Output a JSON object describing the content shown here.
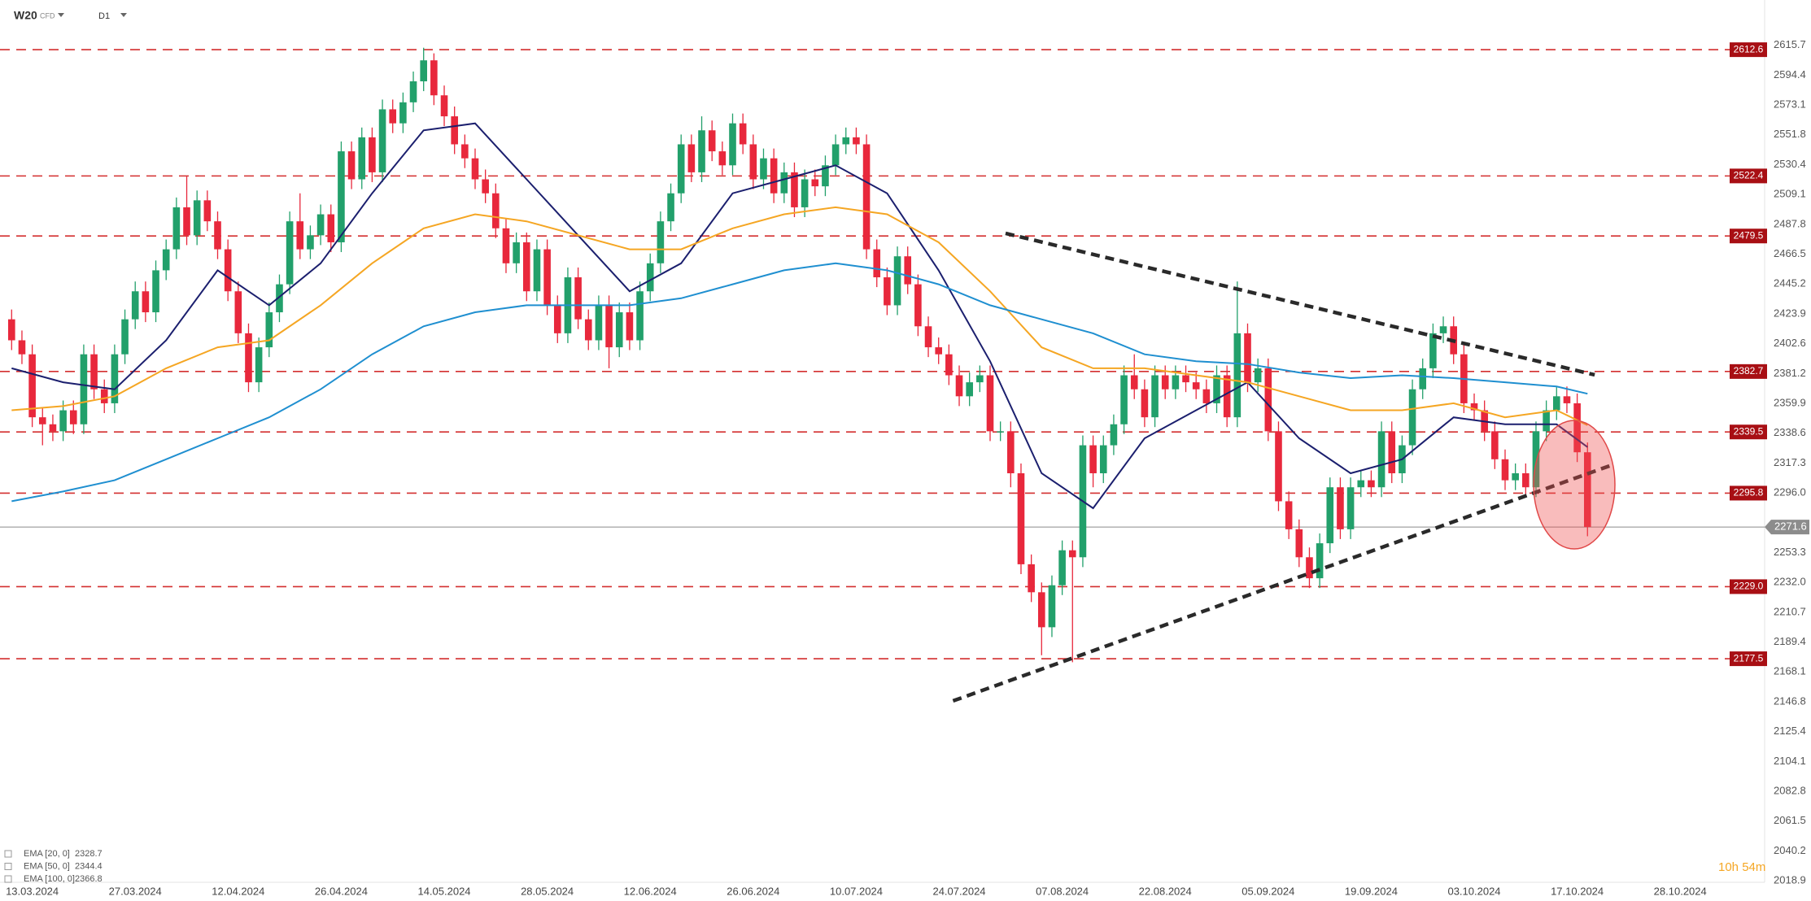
{
  "header": {
    "symbol": "W20",
    "badge": "CFD",
    "interval": "D1"
  },
  "countdown": "10h 54m",
  "chart_data": {
    "type": "candlestick",
    "up_color": "#22a06b",
    "down_color": "#e8283c",
    "categories": [
      null,
      null,
      "13.03.2024",
      null,
      null,
      null,
      null,
      null,
      null,
      null,
      null,
      null,
      "27.03.2024",
      null,
      null,
      null,
      null,
      null,
      null,
      null,
      null,
      null,
      "12.04.2024",
      null,
      null,
      null,
      null,
      null,
      null,
      null,
      null,
      null,
      "26.04.2024",
      null,
      null,
      null,
      null,
      null,
      null,
      null,
      null,
      null,
      "14.05.2024",
      null,
      null,
      null,
      null,
      null,
      null,
      null,
      null,
      null,
      "28.05.2024",
      null,
      null,
      null,
      null,
      null,
      null,
      null,
      null,
      null,
      "12.06.2024",
      null,
      null,
      null,
      null,
      null,
      null,
      null,
      null,
      null,
      "26.06.2024",
      null,
      null,
      null,
      null,
      null,
      null,
      null,
      null,
      null,
      "10.07.2024",
      null,
      null,
      null,
      null,
      null,
      null,
      null,
      null,
      null,
      "24.07.2024",
      null,
      null,
      null,
      null,
      null,
      null,
      null,
      null,
      null,
      "07.08.2024",
      null,
      null,
      null,
      null,
      null,
      null,
      null,
      null,
      null,
      "22.08.2024",
      null,
      null,
      null,
      null,
      null,
      null,
      null,
      null,
      null,
      "05.09.2024",
      null,
      null,
      null,
      null,
      null,
      null,
      null,
      null,
      null,
      "19.09.2024",
      null,
      null,
      null,
      null,
      null,
      null,
      null,
      null,
      null,
      "03.10.2024",
      null,
      null,
      null,
      null,
      null,
      null,
      null,
      null,
      null,
      "17.10.2024",
      null,
      null,
      null,
      null,
      null,
      null,
      null,
      null,
      null,
      "28.10.2024"
    ],
    "open": [
      2420,
      2405,
      2395,
      2350,
      2345,
      2340,
      2355,
      2345,
      2395,
      2370,
      2360,
      2395,
      2420,
      2440,
      2425,
      2455,
      2470,
      2500,
      2480,
      2505,
      2490,
      2470,
      2440,
      2410,
      2375,
      2400,
      2425,
      2445,
      2490,
      2470,
      2480,
      2495,
      2475,
      2540,
      2520,
      2550,
      2525,
      2570,
      2560,
      2575,
      2590,
      2605,
      2580,
      2565,
      2545,
      2535,
      2520,
      2510,
      2485,
      2460,
      2475,
      2440,
      2470,
      2430,
      2410,
      2450,
      2420,
      2405,
      2430,
      2400,
      2425,
      2405,
      2440,
      2460,
      2490,
      2510,
      2545,
      2525,
      2555,
      2540,
      2530,
      2560,
      2545,
      2520,
      2535,
      2510,
      2525,
      2500,
      2520,
      2515,
      2530,
      2545,
      2550,
      2545,
      2470,
      2450,
      2430,
      2465,
      2445,
      2415,
      2400,
      2395,
      2380,
      2365,
      2375,
      2380,
      2340,
      2340,
      2310,
      2245,
      2225,
      2200,
      2230,
      2255,
      2250,
      2330,
      2310,
      2330,
      2345,
      2380,
      2370,
      2350,
      2380,
      2370,
      2380,
      2375,
      2370,
      2360,
      2380,
      2350,
      2410,
      2375,
      2385,
      2340,
      2290,
      2270,
      2250,
      2235,
      2260,
      2300,
      2270,
      2300,
      2305,
      2300,
      2340,
      2310,
      2330,
      2370,
      2385,
      2410,
      2415,
      2395,
      2360,
      2355,
      2340,
      2320,
      2305,
      2310,
      2300,
      2340,
      2355,
      2365,
      2360,
      2325,
      null,
      null,
      null,
      null,
      null,
      null,
      null,
      null,
      null
    ],
    "high": [
      2427,
      2412,
      2402,
      2357,
      2352,
      2362,
      2362,
      2402,
      2402,
      2377,
      2402,
      2427,
      2447,
      2447,
      2462,
      2477,
      2507,
      2522,
      2512,
      2512,
      2497,
      2477,
      2447,
      2417,
      2407,
      2432,
      2452,
      2497,
      2510,
      2487,
      2502,
      2502,
      2547,
      2547,
      2557,
      2557,
      2577,
      2577,
      2582,
      2597,
      2614,
      2610,
      2587,
      2572,
      2552,
      2542,
      2527,
      2517,
      2492,
      2482,
      2482,
      2477,
      2477,
      2437,
      2457,
      2457,
      2427,
      2437,
      2437,
      2432,
      2432,
      2447,
      2467,
      2497,
      2517,
      2552,
      2552,
      2565,
      2562,
      2547,
      2567,
      2567,
      2552,
      2542,
      2542,
      2532,
      2532,
      2527,
      2527,
      2537,
      2552,
      2557,
      2557,
      2552,
      2477,
      2457,
      2472,
      2472,
      2452,
      2422,
      2407,
      2402,
      2387,
      2382,
      2387,
      2387,
      2347,
      2347,
      2317,
      2252,
      2232,
      2237,
      2262,
      2262,
      2337,
      2337,
      2337,
      2352,
      2387,
      2395,
      2377,
      2387,
      2387,
      2387,
      2387,
      2382,
      2377,
      2387,
      2387,
      2447,
      2417,
      2392,
      2392,
      2347,
      2297,
      2277,
      2257,
      2267,
      2307,
      2307,
      2307,
      2312,
      2312,
      2347,
      2347,
      2337,
      2377,
      2392,
      2417,
      2422,
      2422,
      2402,
      2367,
      2362,
      2347,
      2327,
      2317,
      2317,
      2347,
      2362,
      2372,
      2372,
      2367,
      2332,
      null,
      null,
      null,
      null,
      null,
      null,
      null,
      null,
      null
    ],
    "low": [
      2398,
      2388,
      2343,
      2330,
      2333,
      2333,
      2338,
      2338,
      2363,
      2353,
      2353,
      2388,
      2413,
      2418,
      2418,
      2448,
      2463,
      2473,
      2473,
      2483,
      2463,
      2433,
      2403,
      2368,
      2368,
      2393,
      2418,
      2438,
      2463,
      2463,
      2473,
      2468,
      2468,
      2513,
      2513,
      2518,
      2518,
      2553,
      2553,
      2568,
      2583,
      2573,
      2558,
      2538,
      2528,
      2513,
      2503,
      2478,
      2453,
      2453,
      2433,
      2433,
      2423,
      2403,
      2403,
      2413,
      2398,
      2398,
      2385,
      2393,
      2398,
      2398,
      2433,
      2453,
      2483,
      2503,
      2518,
      2518,
      2533,
      2523,
      2523,
      2538,
      2513,
      2513,
      2503,
      2503,
      2493,
      2493,
      2508,
      2508,
      2523,
      2538,
      2538,
      2463,
      2443,
      2423,
      2423,
      2438,
      2408,
      2393,
      2388,
      2373,
      2358,
      2358,
      2368,
      2333,
      2333,
      2300,
      2238,
      2218,
      2180,
      2193,
      2223,
      2175,
      2243,
      2300,
      2303,
      2323,
      2338,
      2363,
      2343,
      2343,
      2363,
      2363,
      2368,
      2363,
      2353,
      2353,
      2343,
      2343,
      2368,
      2368,
      2333,
      2283,
      2263,
      2243,
      2228,
      2228,
      2253,
      2263,
      2263,
      2293,
      2293,
      2293,
      2303,
      2303,
      2323,
      2363,
      2378,
      2403,
      2388,
      2353,
      2348,
      2333,
      2313,
      2298,
      2298,
      2293,
      2293,
      2333,
      2348,
      2353,
      2318,
      2265,
      null,
      null,
      null,
      null,
      null,
      null,
      null,
      null,
      null
    ],
    "close": [
      2405,
      2395,
      2350,
      2345,
      2340,
      2355,
      2345,
      2395,
      2370,
      2360,
      2395,
      2420,
      2440,
      2425,
      2455,
      2470,
      2500,
      2480,
      2505,
      2490,
      2470,
      2440,
      2410,
      2375,
      2400,
      2425,
      2445,
      2490,
      2470,
      2480,
      2495,
      2475,
      2540,
      2520,
      2550,
      2525,
      2570,
      2560,
      2575,
      2590,
      2605,
      2580,
      2565,
      2545,
      2535,
      2520,
      2510,
      2485,
      2460,
      2475,
      2440,
      2470,
      2430,
      2410,
      2450,
      2420,
      2405,
      2430,
      2400,
      2425,
      2405,
      2440,
      2460,
      2490,
      2510,
      2545,
      2525,
      2555,
      2540,
      2530,
      2560,
      2545,
      2520,
      2535,
      2510,
      2525,
      2500,
      2520,
      2515,
      2530,
      2545,
      2550,
      2545,
      2470,
      2450,
      2430,
      2465,
      2445,
      2415,
      2400,
      2395,
      2380,
      2365,
      2375,
      2380,
      2340,
      2340,
      2310,
      2245,
      2225,
      2200,
      2230,
      2255,
      2250,
      2330,
      2310,
      2330,
      2345,
      2380,
      2370,
      2350,
      2380,
      2370,
      2380,
      2375,
      2370,
      2360,
      2380,
      2350,
      2410,
      2375,
      2385,
      2340,
      2290,
      2270,
      2250,
      2235,
      2260,
      2300,
      2270,
      2300,
      2305,
      2300,
      2340,
      2310,
      2330,
      2370,
      2385,
      2410,
      2415,
      2395,
      2360,
      2355,
      2340,
      2320,
      2305,
      2310,
      2300,
      2340,
      2355,
      2365,
      2360,
      2325,
      2271.6,
      null,
      null,
      null,
      null,
      null,
      null,
      null,
      null,
      null
    ],
    "series": [
      {
        "name": "EMA [20, 0]",
        "last": 2328.7,
        "color": "#1b1f6e",
        "x": [
          0,
          5,
          10,
          15,
          20,
          25,
          30,
          35,
          40,
          45,
          50,
          55,
          60,
          65,
          70,
          75,
          80,
          85,
          90,
          95,
          100,
          105,
          110,
          115,
          120,
          125,
          130,
          135,
          140,
          145,
          150,
          153
        ],
        "values": [
          2385,
          2375,
          2370,
          2405,
          2455,
          2430,
          2460,
          2510,
          2555,
          2560,
          2520,
          2480,
          2440,
          2460,
          2510,
          2520,
          2530,
          2510,
          2455,
          2390,
          2310,
          2285,
          2335,
          2355,
          2375,
          2335,
          2310,
          2320,
          2350,
          2345,
          2345,
          2328.7
        ]
      },
      {
        "name": "EMA [50, 0]",
        "last": 2344.4,
        "color": "#f5a623",
        "x": [
          0,
          5,
          10,
          15,
          20,
          25,
          30,
          35,
          40,
          45,
          50,
          55,
          60,
          65,
          70,
          75,
          80,
          85,
          90,
          95,
          100,
          105,
          110,
          115,
          120,
          125,
          130,
          135,
          140,
          145,
          150,
          153
        ],
        "values": [
          2355,
          2358,
          2365,
          2385,
          2400,
          2405,
          2430,
          2460,
          2485,
          2495,
          2490,
          2480,
          2470,
          2470,
          2485,
          2495,
          2500,
          2495,
          2475,
          2440,
          2400,
          2385,
          2385,
          2380,
          2375,
          2365,
          2355,
          2355,
          2360,
          2350,
          2355,
          2344.4
        ]
      },
      {
        "name": "EMA [100, 0]",
        "last": 2366.8,
        "color": "#1f8fd0",
        "x": [
          0,
          5,
          10,
          15,
          20,
          25,
          30,
          35,
          40,
          45,
          50,
          55,
          60,
          65,
          70,
          75,
          80,
          85,
          90,
          95,
          100,
          105,
          110,
          115,
          120,
          125,
          130,
          135,
          140,
          145,
          150,
          153
        ],
        "values": [
          2290,
          2297,
          2305,
          2320,
          2335,
          2350,
          2370,
          2395,
          2415,
          2425,
          2430,
          2430,
          2430,
          2435,
          2445,
          2455,
          2460,
          2455,
          2445,
          2430,
          2420,
          2410,
          2395,
          2390,
          2388,
          2382,
          2378,
          2380,
          2378,
          2375,
          2372,
          2366.8
        ]
      }
    ],
    "levels": [
      2612.6,
      2522.4,
      2479.5,
      2382.7,
      2339.5,
      2295.8,
      2229.0,
      2177.5
    ],
    "level_labels": [
      "2612.6",
      "2522.4",
      "2479.5",
      "2382.7",
      "2339.5",
      "2295.8",
      "2229.0",
      "2177.5"
    ],
    "level_color": "#d32f2f",
    "last_price": 2271.6,
    "trendlines": [
      {
        "x": [
          96.5,
          153.7
        ],
        "values": [
          2481.4,
          2380.3
        ]
      },
      {
        "x": [
          91.4,
          155.6
        ],
        "values": [
          2147.4,
          2316.5
        ]
      }
    ],
    "ylim": [
      2017.8,
      2648.1
    ],
    "yticks": [
      2615.7,
      2594.4,
      2573.1,
      2551.8,
      2530.4,
      2509.1,
      2487.8,
      2466.5,
      2445.2,
      2423.9,
      2402.6,
      2381.2,
      2359.9,
      2338.6,
      2317.3,
      2296.0,
      2253.3,
      2232.0,
      2210.7,
      2189.4,
      2168.1,
      2146.8,
      2125.4,
      2104.1,
      2082.8,
      2061.5,
      2040.2,
      2018.9
    ],
    "ytick_labels": [
      "2615.7",
      "2594.4",
      "2573.1",
      "2551.8",
      "2530.4",
      "2509.1",
      "2487.8",
      "2466.5",
      "2445.2",
      "2423.9",
      "2402.6",
      "2381.2",
      "2359.9",
      "2338.6",
      "2317.3",
      "2296.0",
      "2253.3",
      "2232.0",
      "2210.7",
      "2189.4",
      "2168.1",
      "2146.8",
      "2125.4",
      "2104.1",
      "2082.8",
      "2061.5",
      "2040.2",
      "2018.9"
    ]
  }
}
